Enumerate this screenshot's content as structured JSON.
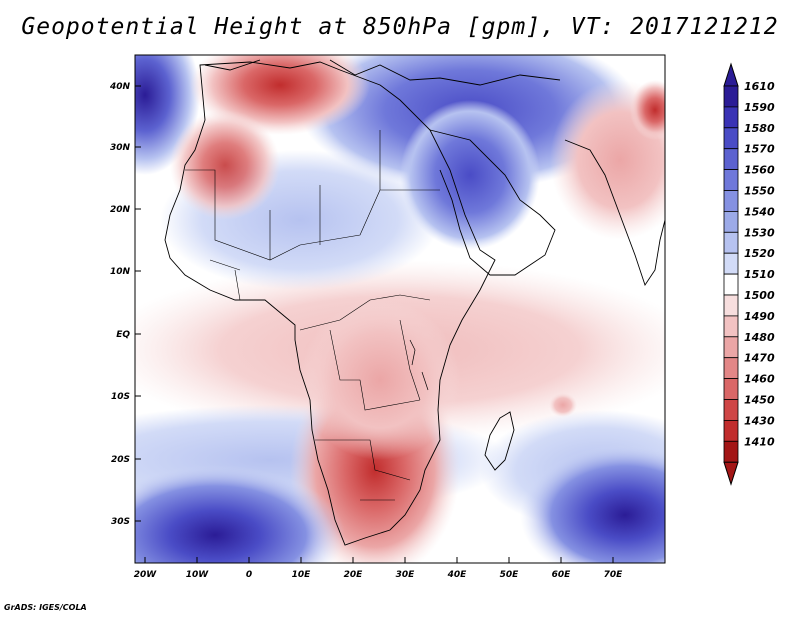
{
  "title": "Geopotential Height at 850hPa [gpm], VT: 2017121212",
  "footer": "GrADS: IGES/COLA",
  "map": {
    "lat_labels": [
      "40N",
      "30N",
      "20N",
      "10N",
      "EQ",
      "10S",
      "20S",
      "30S"
    ],
    "lon_labels": [
      "20W",
      "10W",
      "0",
      "10E",
      "20E",
      "30E",
      "40E",
      "50E",
      "60E",
      "70E"
    ]
  },
  "colorbar": {
    "levels": [
      "1610",
      "1590",
      "1580",
      "1570",
      "1560",
      "1550",
      "1540",
      "1530",
      "1520",
      "1510",
      "1500",
      "1490",
      "1480",
      "1470",
      "1460",
      "1450",
      "1430",
      "1410"
    ],
    "colors": [
      "#2b1c96",
      "#3a33b5",
      "#4a4cc6",
      "#5c62d0",
      "#6f78da",
      "#8591e2",
      "#9caae8",
      "#b6c2f0",
      "#d2dbf7",
      "#ffffff",
      "#f7dede",
      "#f2c2c2",
      "#eba6a6",
      "#e38787",
      "#da6767",
      "#cf4646",
      "#c12d2d",
      "#a31616"
    ]
  },
  "fields": {
    "land": "#fbeded",
    "ocean": "#ffffff"
  }
}
